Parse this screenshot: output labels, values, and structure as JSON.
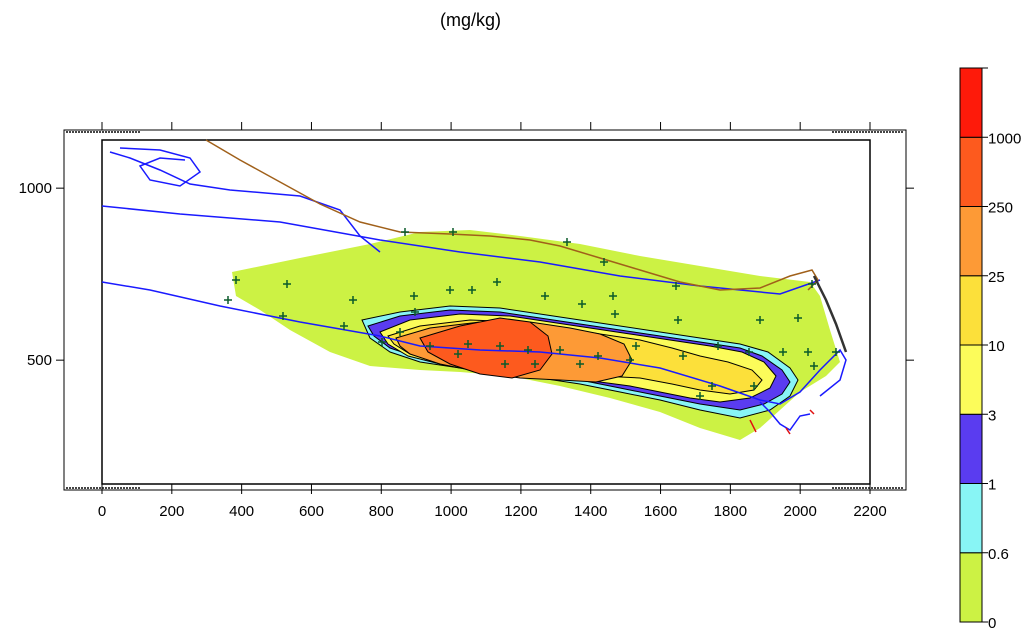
{
  "unit_label": "(mg/kg)",
  "x_ticks": [
    0,
    200,
    400,
    600,
    800,
    1000,
    1200,
    1400,
    1600,
    1800,
    2000,
    2200
  ],
  "y_ticks": [
    500,
    1000
  ],
  "legend": {
    "bands": [
      {
        "label": "0",
        "color": "#ccf244"
      },
      {
        "label": "0.6",
        "color": "#88f5f5"
      },
      {
        "label": "1",
        "color": "#5a3cf0"
      },
      {
        "label": "3",
        "color": "#fcfc5a"
      },
      {
        "label": "10",
        "color": "#fce03a"
      },
      {
        "label": "25",
        "color": "#fd9a36"
      },
      {
        "label": "250",
        "color": "#fd5a1e"
      },
      {
        "label": "1000",
        "color": "#fe1a0a"
      }
    ]
  },
  "chart_data": {
    "type": "heatmap",
    "title": "(mg/kg)",
    "xlim": [
      0,
      2200
    ],
    "ylim": [
      140,
      1140
    ],
    "contour_levels": [
      0,
      0.6,
      1,
      3,
      10,
      25,
      250,
      1000
    ]
  }
}
